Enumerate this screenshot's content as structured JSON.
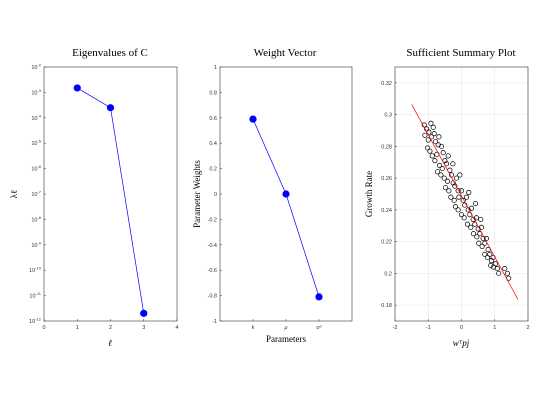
{
  "chart_data": [
    {
      "type": "line",
      "title": "Eigenvalues of C",
      "xlabel": "ℓ",
      "ylabel": "λℓ",
      "yscale": "log",
      "xlim": [
        0,
        4
      ],
      "ylim_exp": [
        -12,
        -2
      ],
      "x_ticks": [
        "0",
        "1",
        "2",
        "3",
        "4"
      ],
      "y_ticks": [
        {
          "base": "10",
          "exp": "-12"
        },
        {
          "base": "10",
          "exp": "-11"
        },
        {
          "base": "10",
          "exp": "-10"
        },
        {
          "base": "10",
          "exp": "-9"
        },
        {
          "base": "10",
          "exp": "-8"
        },
        {
          "base": "10",
          "exp": "-7"
        },
        {
          "base": "10",
          "exp": "-6"
        },
        {
          "base": "10",
          "exp": "-5"
        },
        {
          "base": "10",
          "exp": "-4"
        },
        {
          "base": "10",
          "exp": "-3"
        },
        {
          "base": "10",
          "exp": "-2"
        }
      ],
      "x": [
        1,
        2,
        3
      ],
      "values": [
        0.0015,
        0.00025,
        2e-12
      ],
      "color": "#0000ff"
    },
    {
      "type": "line",
      "title": "Weight Vector",
      "xlabel": "Parameters",
      "ylabel": "Parameter Weights",
      "ylim": [
        -1,
        1
      ],
      "y_ticks": [
        "-1",
        "-0.8",
        "-0.6",
        "-0.4",
        "-0.2",
        "0",
        "0.2",
        "0.4",
        "0.6",
        "0.8",
        "1"
      ],
      "categories": [
        "k",
        "μ",
        "σ²"
      ],
      "values": [
        0.59,
        0.0,
        -0.81
      ],
      "color": "#0000ff"
    },
    {
      "type": "scatter",
      "title": "Sufficient Summary Plot",
      "xlabel": "wᵀpj",
      "ylabel": "Growth Rate",
      "xlim": [
        -2,
        2
      ],
      "ylim": [
        0.17,
        0.33
      ],
      "grid": true,
      "x_ticks": [
        "-2",
        "-1",
        "0",
        "1",
        "2"
      ],
      "y_ticks": [
        "0.18",
        "0.2",
        "0.22",
        "0.24",
        "0.26",
        "0.28",
        "0.3",
        "0.32"
      ],
      "fit_line": {
        "x": [
          -1.5,
          1.7
        ],
        "y": [
          0.3065,
          0.1835
        ],
        "color": "#ff0000"
      },
      "points": [
        [
          -1.12,
          0.2935
        ],
        [
          -1.05,
          0.291
        ],
        [
          -0.98,
          0.289
        ],
        [
          -0.92,
          0.2945
        ],
        [
          -0.85,
          0.292
        ],
        [
          -1.1,
          0.287
        ],
        [
          -1.0,
          0.284
        ],
        [
          -0.9,
          0.286
        ],
        [
          -0.82,
          0.288
        ],
        [
          -0.78,
          0.283
        ],
        [
          -1.02,
          0.279
        ],
        [
          -0.95,
          0.277
        ],
        [
          -0.7,
          0.281
        ],
        [
          -0.68,
          0.286
        ],
        [
          -0.6,
          0.28
        ],
        [
          -0.88,
          0.274
        ],
        [
          -0.8,
          0.271
        ],
        [
          -0.74,
          0.275
        ],
        [
          -0.55,
          0.276
        ],
        [
          -0.5,
          0.271
        ],
        [
          -0.66,
          0.268
        ],
        [
          -0.58,
          0.266
        ],
        [
          -0.45,
          0.269
        ],
        [
          -0.4,
          0.274
        ],
        [
          -0.35,
          0.265
        ],
        [
          -0.62,
          0.262
        ],
        [
          -0.52,
          0.26
        ],
        [
          -0.42,
          0.258
        ],
        [
          -0.3,
          0.262
        ],
        [
          -0.25,
          0.257
        ],
        [
          -0.48,
          0.254
        ],
        [
          -0.38,
          0.252
        ],
        [
          -0.2,
          0.255
        ],
        [
          -0.15,
          0.26
        ],
        [
          -0.1,
          0.252
        ],
        [
          -0.32,
          0.248
        ],
        [
          -0.22,
          0.246
        ],
        [
          -0.08,
          0.248
        ],
        [
          0.0,
          0.252
        ],
        [
          0.05,
          0.246
        ],
        [
          -0.18,
          0.242
        ],
        [
          -0.1,
          0.24
        ],
        [
          0.1,
          0.243
        ],
        [
          0.15,
          0.248
        ],
        [
          0.2,
          0.24
        ],
        [
          0.0,
          0.237
        ],
        [
          0.08,
          0.235
        ],
        [
          0.25,
          0.237
        ],
        [
          0.3,
          0.241
        ],
        [
          0.35,
          0.234
        ],
        [
          0.18,
          0.231
        ],
        [
          0.28,
          0.229
        ],
        [
          0.4,
          0.231
        ],
        [
          0.45,
          0.235
        ],
        [
          0.5,
          0.228
        ],
        [
          0.36,
          0.225
        ],
        [
          0.46,
          0.223
        ],
        [
          0.55,
          0.225
        ],
        [
          0.6,
          0.229
        ],
        [
          0.65,
          0.222
        ],
        [
          0.52,
          0.219
        ],
        [
          0.62,
          0.217
        ],
        [
          0.7,
          0.219
        ],
        [
          0.75,
          0.222
        ],
        [
          0.8,
          0.215
        ],
        [
          0.7,
          0.212
        ],
        [
          0.78,
          0.21
        ],
        [
          0.85,
          0.212
        ],
        [
          0.9,
          0.208
        ],
        [
          0.95,
          0.21
        ],
        [
          0.88,
          0.205
        ],
        [
          0.96,
          0.204
        ],
        [
          1.02,
          0.206
        ],
        [
          1.08,
          0.203
        ],
        [
          1.12,
          0.2
        ],
        [
          1.3,
          0.203
        ],
        [
          1.38,
          0.2
        ],
        [
          1.42,
          0.197
        ],
        [
          -0.72,
          0.264
        ],
        [
          0.42,
          0.244
        ],
        [
          -0.26,
          0.269
        ],
        [
          0.58,
          0.234
        ],
        [
          -0.05,
          0.262
        ],
        [
          0.22,
          0.251
        ]
      ]
    }
  ]
}
